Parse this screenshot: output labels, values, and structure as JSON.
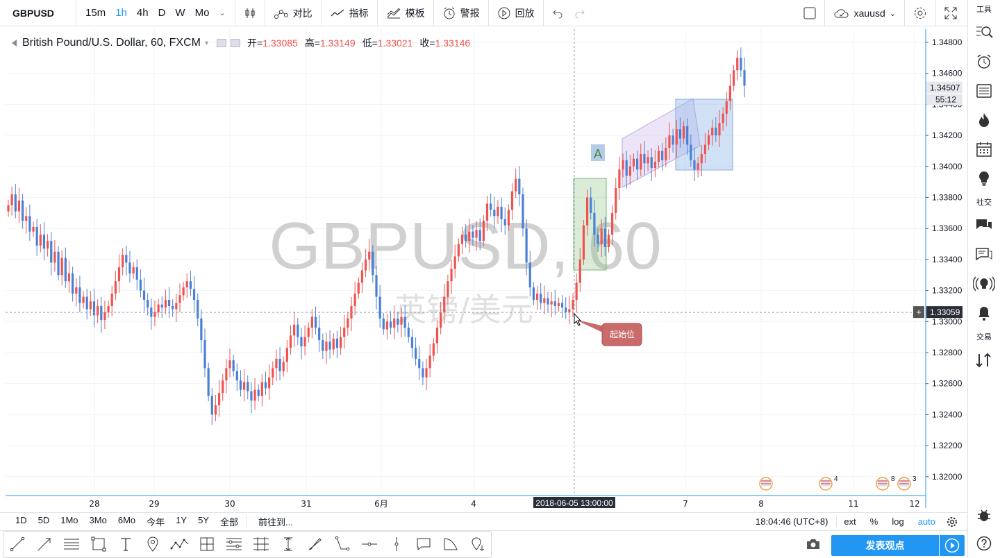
{
  "topbar": {
    "symbol": "GBPUSD",
    "timeframes": [
      "15m",
      "1h",
      "4h",
      "D",
      "W",
      "Mo"
    ],
    "active_timeframe": "1h",
    "compare_label": "对比",
    "indicators_label": "指标",
    "templates_label": "模板",
    "alert_label": "警报",
    "replay_label": "回放",
    "account_label": "xauusd"
  },
  "legend": {
    "title": "British Pound/U.S. Dollar, 60, FXCM",
    "open_label": "开=",
    "open": "1.33085",
    "high_label": "高=",
    "high": "1.33149",
    "low_label": "低=",
    "low": "1.33021",
    "close_label": "收=",
    "close": "1.33146"
  },
  "watermark": {
    "symbol": "GBPUSD, 60",
    "name": "英镑/美元"
  },
  "chart_data": {
    "type": "candlestick",
    "ylim": [
      1.3193,
      1.349
    ],
    "y_ticks": [
      "1.34800",
      "1.34600",
      "1.34400",
      "1.34200",
      "1.34000",
      "1.33800",
      "1.33600",
      "1.33400",
      "1.33200",
      "1.33000",
      "1.32800",
      "1.32600",
      "1.32400",
      "1.32200",
      "1.32000"
    ],
    "x_ticks": [
      "28",
      "29",
      "30",
      "31",
      "6月",
      "4",
      "7",
      "8",
      "11",
      "12"
    ],
    "last_price": "1.34507",
    "countdown": "55:12",
    "crosshair_price": "1.33059",
    "crosshair_time": "2018-06-05 13:00:00",
    "annotation_text": "起始位",
    "label_A": "A",
    "colors": {
      "up": "#ef5350",
      "down": "#4a7fd6"
    },
    "closes": [
      1.3375,
      1.3382,
      1.3371,
      1.3378,
      1.3365,
      1.3368,
      1.3358,
      1.3361,
      1.3349,
      1.3356,
      1.3347,
      1.3352,
      1.3338,
      1.3345,
      1.333,
      1.3341,
      1.3326,
      1.3331,
      1.3318,
      1.3322,
      1.3312,
      1.3316,
      1.3308,
      1.3313,
      1.3304,
      1.331,
      1.3301,
      1.3306,
      1.331,
      1.3318,
      1.3326,
      1.3335,
      1.3343,
      1.3338,
      1.3331,
      1.3335,
      1.3327,
      1.332,
      1.3314,
      1.3309,
      1.3303,
      1.3306,
      1.3311,
      1.3309,
      1.3314,
      1.331,
      1.3308,
      1.3312,
      1.3317,
      1.3322,
      1.3326,
      1.3321,
      1.3314,
      1.3302,
      1.3288,
      1.327,
      1.3252,
      1.324,
      1.3246,
      1.3254,
      1.3262,
      1.327,
      1.3275,
      1.3268,
      1.3262,
      1.3256,
      1.3261,
      1.3255,
      1.3249,
      1.3256,
      1.3252,
      1.3261,
      1.3257,
      1.3264,
      1.327,
      1.3276,
      1.3268,
      1.3274,
      1.3283,
      1.3291,
      1.3298,
      1.329,
      1.3284,
      1.329,
      1.3296,
      1.3303,
      1.3296,
      1.3288,
      1.3281,
      1.3287,
      1.3282,
      1.3289,
      1.3283,
      1.329,
      1.3296,
      1.3302,
      1.331,
      1.3318,
      1.3325,
      1.3333,
      1.334,
      1.3345,
      1.333,
      1.3316,
      1.3302,
      1.3295,
      1.33,
      1.3296,
      1.3302,
      1.3298,
      1.3303,
      1.3296,
      1.329,
      1.3283,
      1.3276,
      1.327,
      1.3264,
      1.327,
      1.3278,
      1.3286,
      1.3296,
      1.3306,
      1.3316,
      1.3326,
      1.3334,
      1.3342,
      1.335,
      1.3356,
      1.3352,
      1.3358,
      1.3354,
      1.3359,
      1.3352,
      1.3365,
      1.3376,
      1.3372,
      1.3368,
      1.3374,
      1.3366,
      1.3362,
      1.3372,
      1.3384,
      1.3392,
      1.3382,
      1.336,
      1.3338,
      1.3322,
      1.3314,
      1.3318,
      1.3312,
      1.3315,
      1.3311,
      1.3313,
      1.331,
      1.3312,
      1.3309,
      1.3306,
      1.3308,
      1.3314,
      1.3325,
      1.334,
      1.3362,
      1.338,
      1.337,
      1.3356,
      1.335,
      1.336,
      1.3348,
      1.3356,
      1.337,
      1.3386,
      1.3398,
      1.3404,
      1.3394,
      1.34,
      1.3405,
      1.3398,
      1.3408,
      1.3402,
      1.3406,
      1.3399,
      1.3403,
      1.341,
      1.3404,
      1.3412,
      1.342,
      1.3414,
      1.3424,
      1.3418,
      1.3426,
      1.3414,
      1.3404,
      1.3398,
      1.3402,
      1.3408,
      1.3414,
      1.342,
      1.3425,
      1.342,
      1.3428,
      1.3434,
      1.3442,
      1.3452,
      1.3462,
      1.347,
      1.3462,
      1.3452
    ]
  },
  "bottombar": {
    "ranges": [
      "1D",
      "5D",
      "1Mo",
      "3Mo",
      "6Mo",
      "今年",
      "1Y",
      "5Y",
      "全部"
    ],
    "goto_label": "前往到...",
    "clock": "18:04:46 (UTC+8)",
    "ext_label": "ext",
    "percent_label": "%",
    "log_label": "log",
    "auto_label": "auto"
  },
  "publish_label": "发表观点",
  "rightbar": {
    "tools_label": "工具",
    "social_label": "社交",
    "trade_label": "交易"
  }
}
